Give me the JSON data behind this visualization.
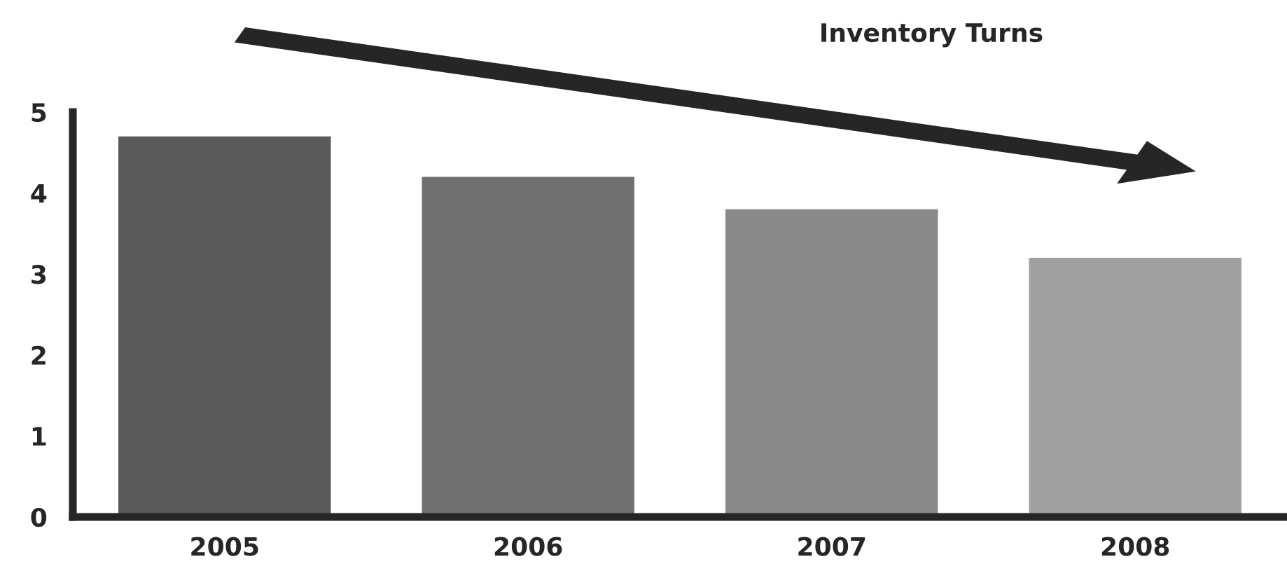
{
  "chart_data": {
    "type": "bar",
    "title": "Inventory Turns",
    "categories": [
      "2005",
      "2006",
      "2007",
      "2008"
    ],
    "values": [
      4.7,
      4.2,
      3.8,
      3.2
    ],
    "colors": [
      "#5a5a5a",
      "#707070",
      "#898989",
      "#a0a0a0"
    ],
    "ylim": [
      0,
      5
    ],
    "yticks": [
      0,
      1,
      2,
      3,
      4,
      5
    ],
    "grid": false,
    "legend": false
  }
}
